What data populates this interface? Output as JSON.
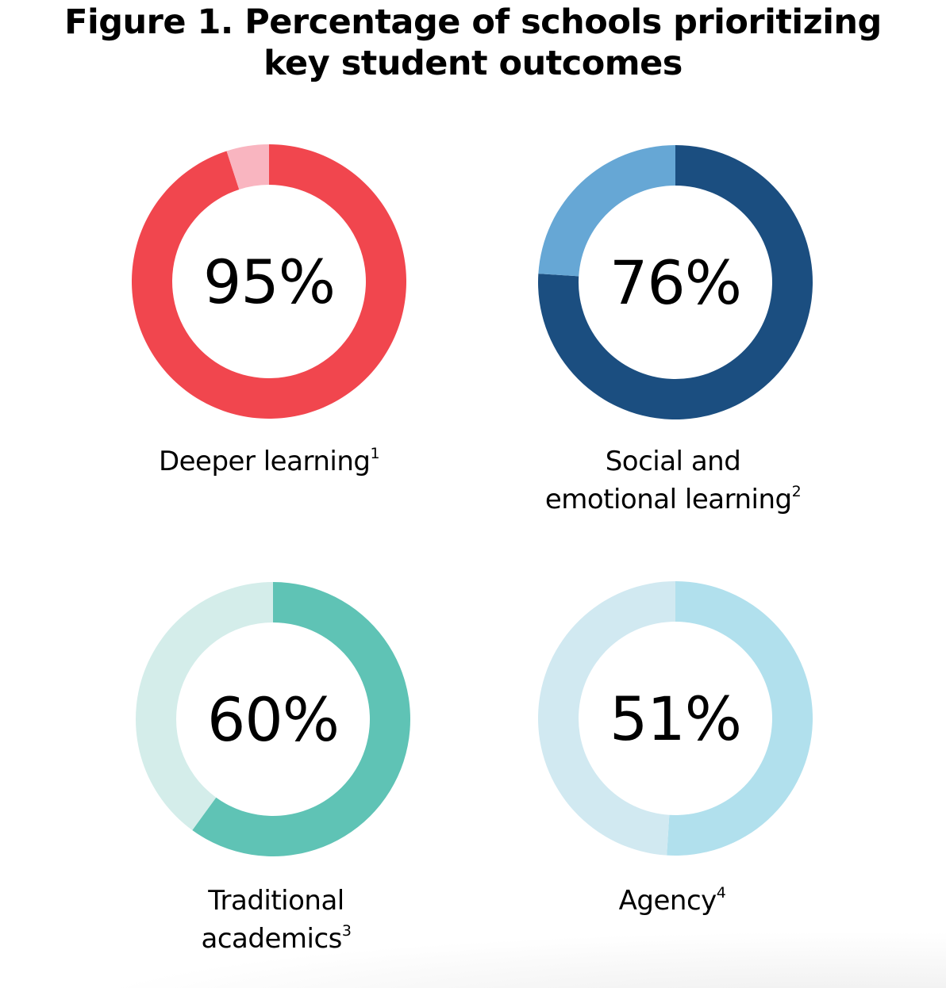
{
  "title": {
    "line1": "Figure 1. Percentage of schools prioritizing",
    "line2": "key student outcomes"
  },
  "donuts": [
    {
      "value_label": "95%",
      "label_line1": "Deeper learning",
      "label_line1_sup": "1",
      "label_line2": "",
      "label_line2_sup": "",
      "color_filled": "#f1464e",
      "color_remaining": "#f9b5c0"
    },
    {
      "value_label": "76%",
      "label_line1": "Social and",
      "label_line1_sup": "",
      "label_line2": "emotional learning",
      "label_line2_sup": "2",
      "color_filled": "#1b4e80",
      "color_remaining": "#66a7d5"
    },
    {
      "value_label": "60%",
      "label_line1": "Traditional",
      "label_line1_sup": "",
      "label_line2": "academics",
      "label_line2_sup": "3",
      "color_filled": "#5fc3b5",
      "color_remaining": "#d4edea"
    },
    {
      "value_label": "51%",
      "label_line1": "Agency",
      "label_line1_sup": "4",
      "label_line2": "",
      "label_line2_sup": "",
      "color_filled": "#b1e0ed",
      "color_remaining": "#d1e9f1"
    }
  ],
  "chart_data": {
    "type": "pie",
    "subtype": "donut",
    "title": "Figure 1. Percentage of schools prioritizing key student outcomes",
    "categories": [
      "Deeper learning",
      "Social and emotional learning",
      "Traditional academics",
      "Agency"
    ],
    "footnotes": [
      "1",
      "2",
      "3",
      "4"
    ],
    "values": [
      95,
      76,
      60,
      51
    ],
    "unit": "%",
    "series": [
      {
        "name": "Deeper learning",
        "values": [
          95,
          5
        ],
        "colors": [
          "#f1464e",
          "#f9b5c0"
        ]
      },
      {
        "name": "Social and emotional learning",
        "values": [
          76,
          24
        ],
        "colors": [
          "#1b4e80",
          "#66a7d5"
        ]
      },
      {
        "name": "Traditional academics",
        "values": [
          60,
          40
        ],
        "colors": [
          "#5fc3b5",
          "#d4edea"
        ]
      },
      {
        "name": "Agency",
        "values": [
          51,
          49
        ],
        "colors": [
          "#b1e0ed",
          "#d1e9f1"
        ]
      }
    ],
    "layout": "2x2 grid",
    "legend": "none"
  }
}
